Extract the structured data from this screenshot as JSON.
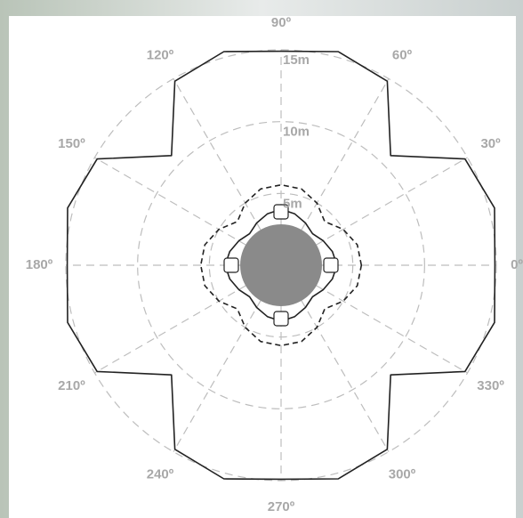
{
  "chart_data": {
    "type": "polar",
    "theta": [
      0,
      15,
      30,
      45,
      60,
      75,
      90,
      105,
      120,
      135,
      150,
      165,
      180,
      195,
      210,
      225,
      240,
      255,
      270,
      285,
      300,
      315,
      330,
      345
    ],
    "rlim": [
      0,
      15
    ],
    "rticks": [
      {
        "value": 5,
        "label": "5m"
      },
      {
        "value": 10,
        "label": "10m"
      },
      {
        "value": 15,
        "label": "15m"
      }
    ],
    "thetaticks": [
      {
        "value": 0,
        "label": "0º"
      },
      {
        "value": 30,
        "label": "30º"
      },
      {
        "value": 60,
        "label": "60º"
      },
      {
        "value": 90,
        "label": "90º"
      },
      {
        "value": 120,
        "label": "120º"
      },
      {
        "value": 150,
        "label": "150º"
      },
      {
        "value": 180,
        "label": "180º"
      },
      {
        "value": 210,
        "label": "210º"
      },
      {
        "value": 240,
        "label": "240º"
      },
      {
        "value": 270,
        "label": "270º"
      },
      {
        "value": 300,
        "label": "300º"
      },
      {
        "value": 330,
        "label": "330º"
      }
    ],
    "grid": true,
    "series": [
      {
        "color": "#222222",
        "style": "solid",
        "values": [
          14.9,
          15.4,
          14.8,
          10.8,
          14.8,
          15.4,
          14.9,
          15.4,
          14.8,
          10.8,
          14.8,
          15.4,
          14.9,
          15.4,
          14.8,
          10.8,
          14.8,
          15.4,
          14.9,
          15.4,
          14.8,
          10.8,
          14.8,
          15.4
        ]
      },
      {
        "color": "#222222",
        "style": "dashed",
        "values": [
          5.6,
          5.5,
          5.0,
          4.3,
          5.0,
          5.5,
          5.6,
          5.5,
          5.0,
          4.3,
          5.0,
          5.5,
          5.6,
          5.5,
          5.0,
          4.3,
          5.0,
          5.5,
          5.6,
          5.5,
          5.0,
          4.3,
          5.0,
          5.5
        ]
      },
      {
        "color": "#222222",
        "style": "solid",
        "values": [
          3.9,
          3.7,
          3.4,
          3.1,
          3.4,
          3.7,
          3.9,
          3.7,
          3.4,
          3.1,
          3.4,
          3.7,
          3.9,
          3.7,
          3.4,
          3.1,
          3.4,
          3.7,
          3.9,
          3.7,
          3.4,
          3.1,
          3.4,
          3.7
        ]
      }
    ]
  }
}
